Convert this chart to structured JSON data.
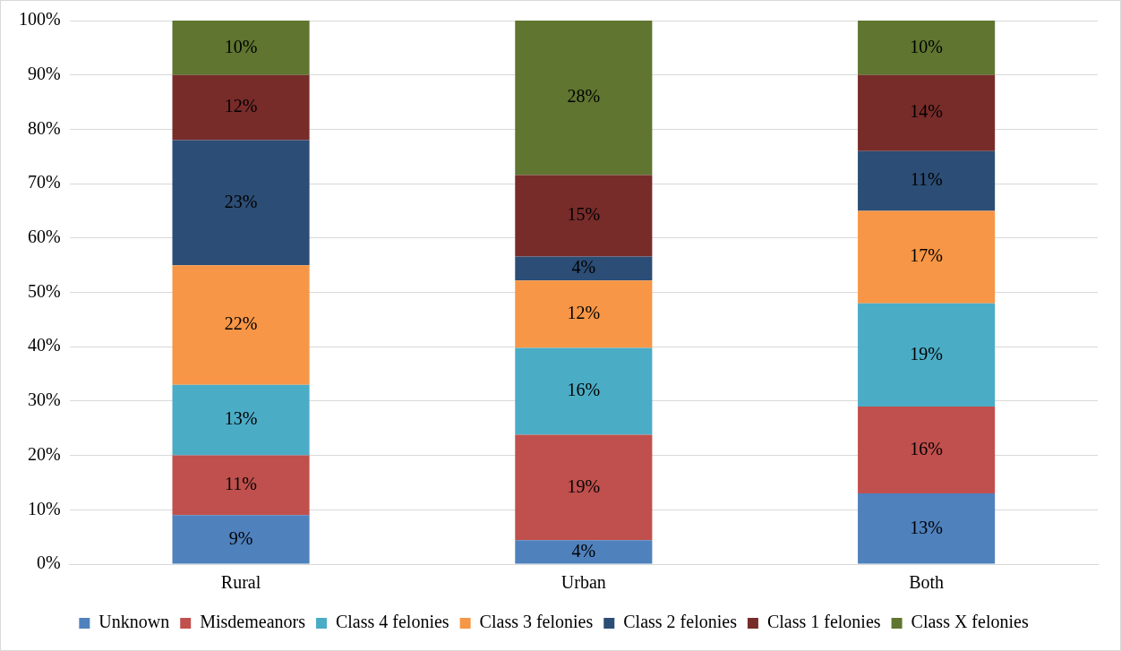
{
  "chart_data": {
    "type": "bar",
    "stacked": true,
    "categories": [
      "Rural",
      "Urban",
      "Both"
    ],
    "series": [
      {
        "name": "Unknown",
        "color": "#4f81bd",
        "values": [
          9,
          4.4,
          13
        ],
        "value_labels": [
          "9%",
          "4%",
          "13%"
        ]
      },
      {
        "name": "Misdemeanors",
        "color": "#c0504d",
        "values": [
          11,
          19.4,
          16
        ],
        "value_labels": [
          "11%",
          "19%",
          "16%"
        ]
      },
      {
        "name": "Class 4 felonies",
        "color": "#4bacc6",
        "values": [
          13,
          16,
          19
        ],
        "value_labels": [
          "13%",
          "16%",
          "19%"
        ]
      },
      {
        "name": "Class 3 felonies",
        "color": "#f79646",
        "values": [
          22,
          12.4,
          17
        ],
        "value_labels": [
          "22%",
          "12%",
          "17%"
        ]
      },
      {
        "name": "Class 2 felonies",
        "color": "#2c4d75",
        "values": [
          23,
          4.4,
          11
        ],
        "value_labels": [
          "23%",
          "4%",
          "11%"
        ]
      },
      {
        "name": "Class 1 felonies",
        "color": "#772c2a",
        "values": [
          12,
          15,
          14
        ],
        "value_labels": [
          "12%",
          "15%",
          "14%"
        ]
      },
      {
        "name": "Class X felonies",
        "color": "#5f7530",
        "values": [
          10,
          28.4,
          10
        ],
        "value_labels": [
          "10%",
          "28%",
          "10%"
        ]
      }
    ],
    "ylim": [
      0,
      100
    ],
    "yticks": [
      {
        "value": 0,
        "label": "0%"
      },
      {
        "value": 10,
        "label": "10%"
      },
      {
        "value": 20,
        "label": "20%"
      },
      {
        "value": 30,
        "label": "30%"
      },
      {
        "value": 40,
        "label": "40%"
      },
      {
        "value": 50,
        "label": "50%"
      },
      {
        "value": 60,
        "label": "60%"
      },
      {
        "value": 70,
        "label": "70%"
      },
      {
        "value": 80,
        "label": "80%"
      },
      {
        "value": 90,
        "label": "90%"
      },
      {
        "value": 100,
        "label": "100%"
      }
    ],
    "grid": "y",
    "legend": "bottom"
  }
}
